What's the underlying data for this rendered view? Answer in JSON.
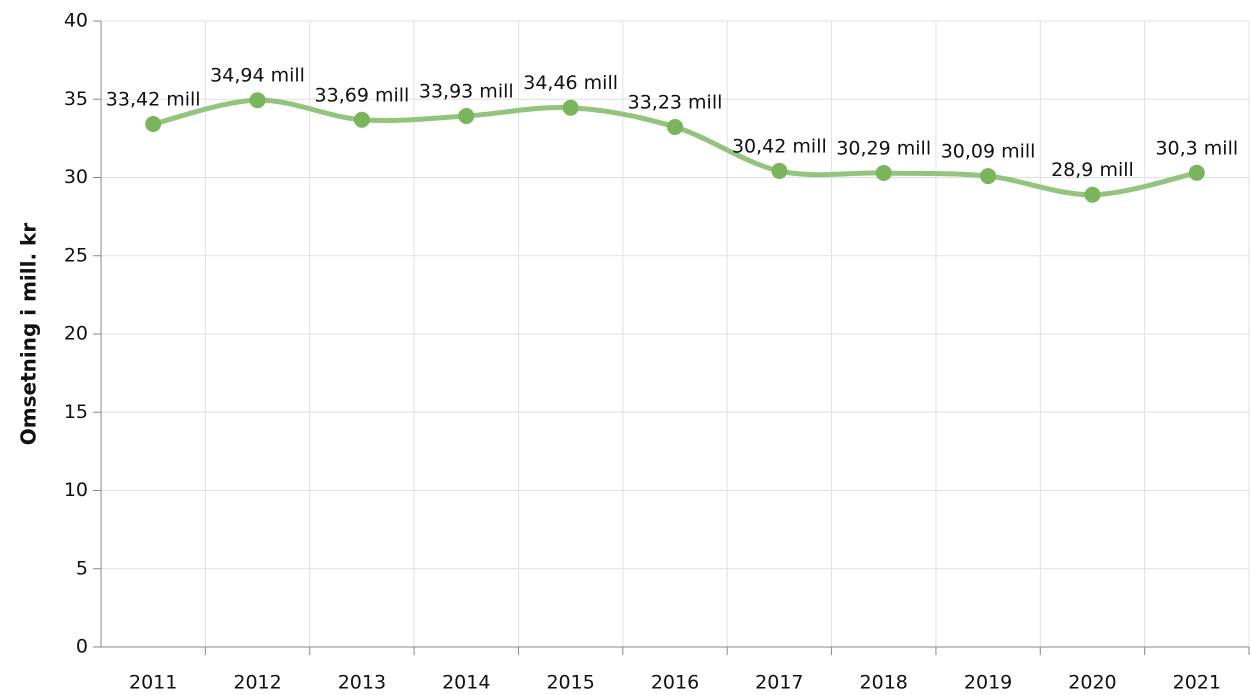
{
  "chart_data": {
    "type": "line",
    "ylabel": "Omsetning i mill. kr",
    "categories": [
      "2011",
      "2012",
      "2013",
      "2014",
      "2015",
      "2016",
      "2017",
      "2018",
      "2019",
      "2020",
      "2021"
    ],
    "series": [
      {
        "name": "Omsetning",
        "color": "#93c47d",
        "marker_color": "#7ab55c",
        "values": [
          33.42,
          34.94,
          33.69,
          33.93,
          34.46,
          33.23,
          30.42,
          30.29,
          30.09,
          28.9,
          30.3
        ],
        "value_labels": [
          "33,42 mill",
          "34,94 mill",
          "33,69 mill",
          "33,93 mill",
          "34,46 mill",
          "33,23 mill",
          "30,42 mill",
          "30,29 mill",
          "30,09 mill",
          "28,9 mill",
          "30,3 mill"
        ]
      }
    ],
    "ylim": [
      0,
      40
    ],
    "yticks": [
      0,
      5,
      10,
      15,
      20,
      25,
      30,
      35,
      40
    ],
    "grid": true,
    "smooth": true
  }
}
